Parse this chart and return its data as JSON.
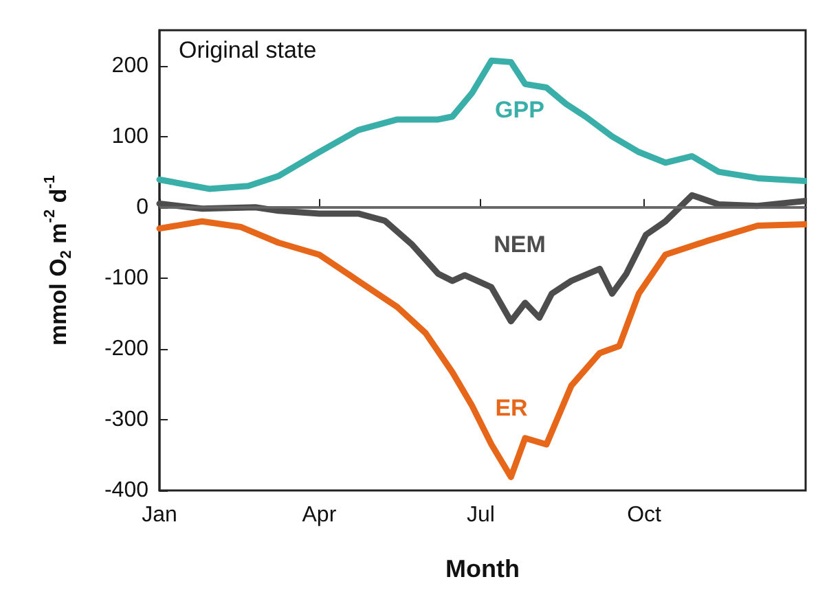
{
  "chart_data": {
    "type": "line",
    "xlabel": "Month",
    "ylabel": "mmol O$_{2}$ m$^{-2}$ d$^{-1}$",
    "xlim": [
      "--01-01",
      "--12-31"
    ],
    "xticks": [
      {
        "value": "--01-01",
        "label": "Jan"
      },
      {
        "value": "--04-01",
        "label": "Apr"
      },
      {
        "value": "--07-01",
        "label": "Jul"
      },
      {
        "value": "--10-01",
        "label": "Oct"
      }
    ],
    "ylim": [
      -400,
      250
    ],
    "yticks": [
      -400,
      -300,
      -200,
      -100,
      0,
      100,
      200
    ],
    "grid": false,
    "marker": "none",
    "line_style": "solid",
    "series": [
      {
        "name": "GPP",
        "color": "#3aafa9",
        "x": [
          "--01-01",
          "--01-29",
          "--02-20",
          "--03-09",
          "--04-01",
          "--04-23",
          "--05-15",
          "--06-07",
          "--06-15",
          "--06-26",
          "--07-07",
          "--07-18",
          "--07-26",
          "--08-07",
          "--08-18",
          "--08-29",
          "--09-13",
          "--09-28",
          "--10-13",
          "--10-28",
          "--11-12",
          "--12-04",
          "--12-31"
        ],
        "values": [
          39,
          26,
          30,
          44,
          78,
          109,
          124,
          124,
          128,
          161,
          207,
          205,
          174,
          169,
          146,
          128,
          100,
          78,
          63,
          72,
          50,
          41,
          37
        ]
      },
      {
        "name": "NEM",
        "color": "#4d4d4d",
        "x": [
          "--01-01",
          "--01-25",
          "--02-24",
          "--03-09",
          "--04-01",
          "--04-23",
          "--05-08",
          "--05-23",
          "--06-07",
          "--06-15",
          "--06-22",
          "--07-07",
          "--07-18",
          "--07-26",
          "--08-03",
          "--08-10",
          "--08-21",
          "--09-06",
          "--09-13",
          "--09-21",
          "--10-02",
          "--10-13",
          "--10-28",
          "--11-12",
          "--12-04",
          "--12-31"
        ],
        "values": [
          5,
          -2,
          0,
          -5,
          -9,
          -9,
          -19,
          -52,
          -94,
          -104,
          -96,
          -113,
          -161,
          -135,
          -156,
          -122,
          -104,
          -87,
          -122,
          -94,
          -39,
          -20,
          17,
          4,
          2,
          9
        ]
      },
      {
        "name": "ER",
        "color": "#e6661a",
        "x": [
          "--01-01",
          "--01-25",
          "--02-16",
          "--03-09",
          "--04-01",
          "--04-23",
          "--05-15",
          "--05-31",
          "--06-15",
          "--06-26",
          "--07-07",
          "--07-18",
          "--07-26",
          "--08-07",
          "--08-21",
          "--09-06",
          "--09-17",
          "--09-28",
          "--10-13",
          "--11-05",
          "--12-04",
          "--12-31"
        ],
        "values": [
          -30,
          -20,
          -28,
          -50,
          -67,
          -104,
          -141,
          -178,
          -233,
          -280,
          -335,
          -381,
          -326,
          -335,
          -252,
          -206,
          -196,
          -122,
          -67,
          -48,
          -26,
          -24
        ]
      }
    ],
    "ref_lines": [
      {
        "axis": "y",
        "value": 0,
        "color": "#666666"
      }
    ],
    "annotations": [
      "Original state"
    ]
  }
}
